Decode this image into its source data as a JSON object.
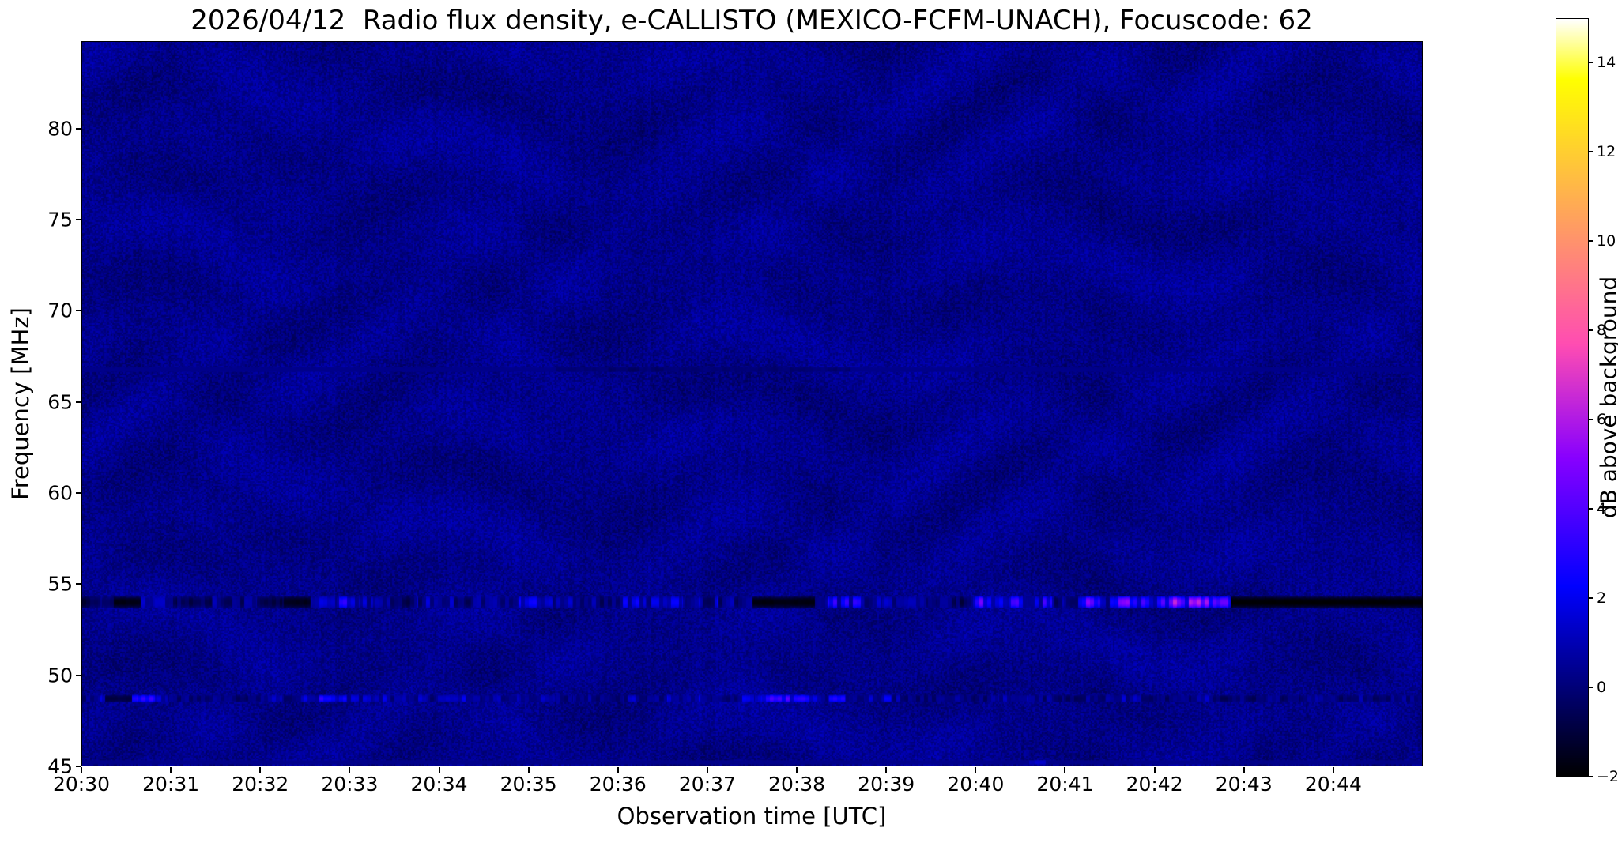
{
  "chart_data": {
    "type": "heatmap",
    "title": "2026/04/12  Radio flux density, e-CALLISTO (MEXICO-FCFM-UNACH), Focuscode: 62",
    "xlabel": "Observation time [UTC]",
    "ylabel": "Frequency [MHz]",
    "colorbar_label": "dB above background",
    "colormap": "gnuplot2",
    "x_tick_labels": [
      "20:30",
      "20:31",
      "20:32",
      "20:33",
      "20:34",
      "20:35",
      "20:36",
      "20:37",
      "20:38",
      "20:39",
      "20:40",
      "20:41",
      "20:42",
      "20:43",
      "20:44"
    ],
    "x_start_minutes": 0,
    "x_end_minutes": 15,
    "y_ticks": [
      45,
      50,
      55,
      60,
      65,
      70,
      75,
      80
    ],
    "ylim": [
      45,
      84.8
    ],
    "clim": [
      -2,
      15
    ],
    "colorbar_ticks": [
      14,
      12,
      10,
      8,
      6,
      4,
      2,
      0,
      -2
    ],
    "legend": "off",
    "grid": "off",
    "background": {
      "mean_db": 0.3,
      "noise_db": 0.55
    },
    "bands": [
      {
        "name": "rfi-band-54MHz",
        "freq_center": 54.0,
        "half_width": 0.35,
        "base_db": -1.9,
        "segments": [
          [
            0,
            0.35,
            1.8
          ],
          [
            0.35,
            0.65,
            -1.5
          ],
          [
            0.65,
            1.05,
            2.2
          ],
          [
            1.05,
            1.45,
            0.8
          ],
          [
            1.45,
            1.95,
            3.6
          ],
          [
            1.95,
            2.25,
            1.2
          ],
          [
            2.25,
            2.55,
            -1.2
          ],
          [
            2.55,
            3.1,
            4.2
          ],
          [
            3.1,
            3.45,
            2.8
          ],
          [
            3.45,
            3.75,
            0.8
          ],
          [
            3.75,
            4.35,
            2.4
          ],
          [
            4.35,
            4.95,
            3.8
          ],
          [
            4.95,
            5.35,
            4.4
          ],
          [
            5.35,
            5.75,
            4.8
          ],
          [
            5.75,
            6.05,
            1.6
          ],
          [
            6.05,
            6.75,
            5.2
          ],
          [
            6.75,
            7.1,
            3.4
          ],
          [
            7.1,
            7.5,
            4.6
          ],
          [
            7.5,
            8.2,
            -1.6
          ],
          [
            8.2,
            8.85,
            4.4
          ],
          [
            8.85,
            9.45,
            3.2
          ],
          [
            9.45,
            9.95,
            1.4
          ],
          [
            9.95,
            10.45,
            6.8
          ],
          [
            10.45,
            10.85,
            7.2
          ],
          [
            10.85,
            11.15,
            3.0
          ],
          [
            11.15,
            11.55,
            6.4
          ],
          [
            11.55,
            12.35,
            7.8
          ],
          [
            12.35,
            12.85,
            8.2
          ],
          [
            12.85,
            15,
            -2
          ]
        ]
      },
      {
        "name": "rfi-band-48.7MHz",
        "freq_center": 48.7,
        "half_width": 0.22,
        "base_db": -1.3,
        "segments": [
          [
            0,
            0.25,
            2.6
          ],
          [
            0.25,
            0.55,
            -0.8
          ],
          [
            0.55,
            0.95,
            4.6
          ],
          [
            0.95,
            1.5,
            2.2
          ],
          [
            1.5,
            2.0,
            1.2
          ],
          [
            2.0,
            2.45,
            2.6
          ],
          [
            2.45,
            2.95,
            4.2
          ],
          [
            2.95,
            3.45,
            3.0
          ],
          [
            3.45,
            3.95,
            2.0
          ],
          [
            3.95,
            4.45,
            3.2
          ],
          [
            4.45,
            5.0,
            1.6
          ],
          [
            5.0,
            5.5,
            3.0
          ],
          [
            5.5,
            6.05,
            2.2
          ],
          [
            6.05,
            6.55,
            3.2
          ],
          [
            6.55,
            7.05,
            2.4
          ],
          [
            7.05,
            7.6,
            4.4
          ],
          [
            7.6,
            8.45,
            5.4
          ],
          [
            8.45,
            9.05,
            3.6
          ],
          [
            9.05,
            9.65,
            2.2
          ],
          [
            9.65,
            10.25,
            1.6
          ],
          [
            10.25,
            10.85,
            2.6
          ],
          [
            10.85,
            11.45,
            1.4
          ],
          [
            11.45,
            12.05,
            2.6
          ],
          [
            12.05,
            12.65,
            2.0
          ],
          [
            12.65,
            13.25,
            1.0
          ],
          [
            13.25,
            14.1,
            1.8
          ],
          [
            14.1,
            15,
            1.2
          ]
        ]
      },
      {
        "name": "faint-dark-lane-67MHz",
        "freq_center": 66.8,
        "half_width": 0.16,
        "base_db": 0.3,
        "segments": [
          [
            5.3,
            8.6,
            -0.5
          ]
        ]
      },
      {
        "name": "bottom-blip-45MHz",
        "freq_center": 45.2,
        "half_width": 0.14,
        "base_db": 0.3,
        "segments": [
          [
            10.6,
            10.78,
            3.0
          ]
        ]
      }
    ]
  }
}
